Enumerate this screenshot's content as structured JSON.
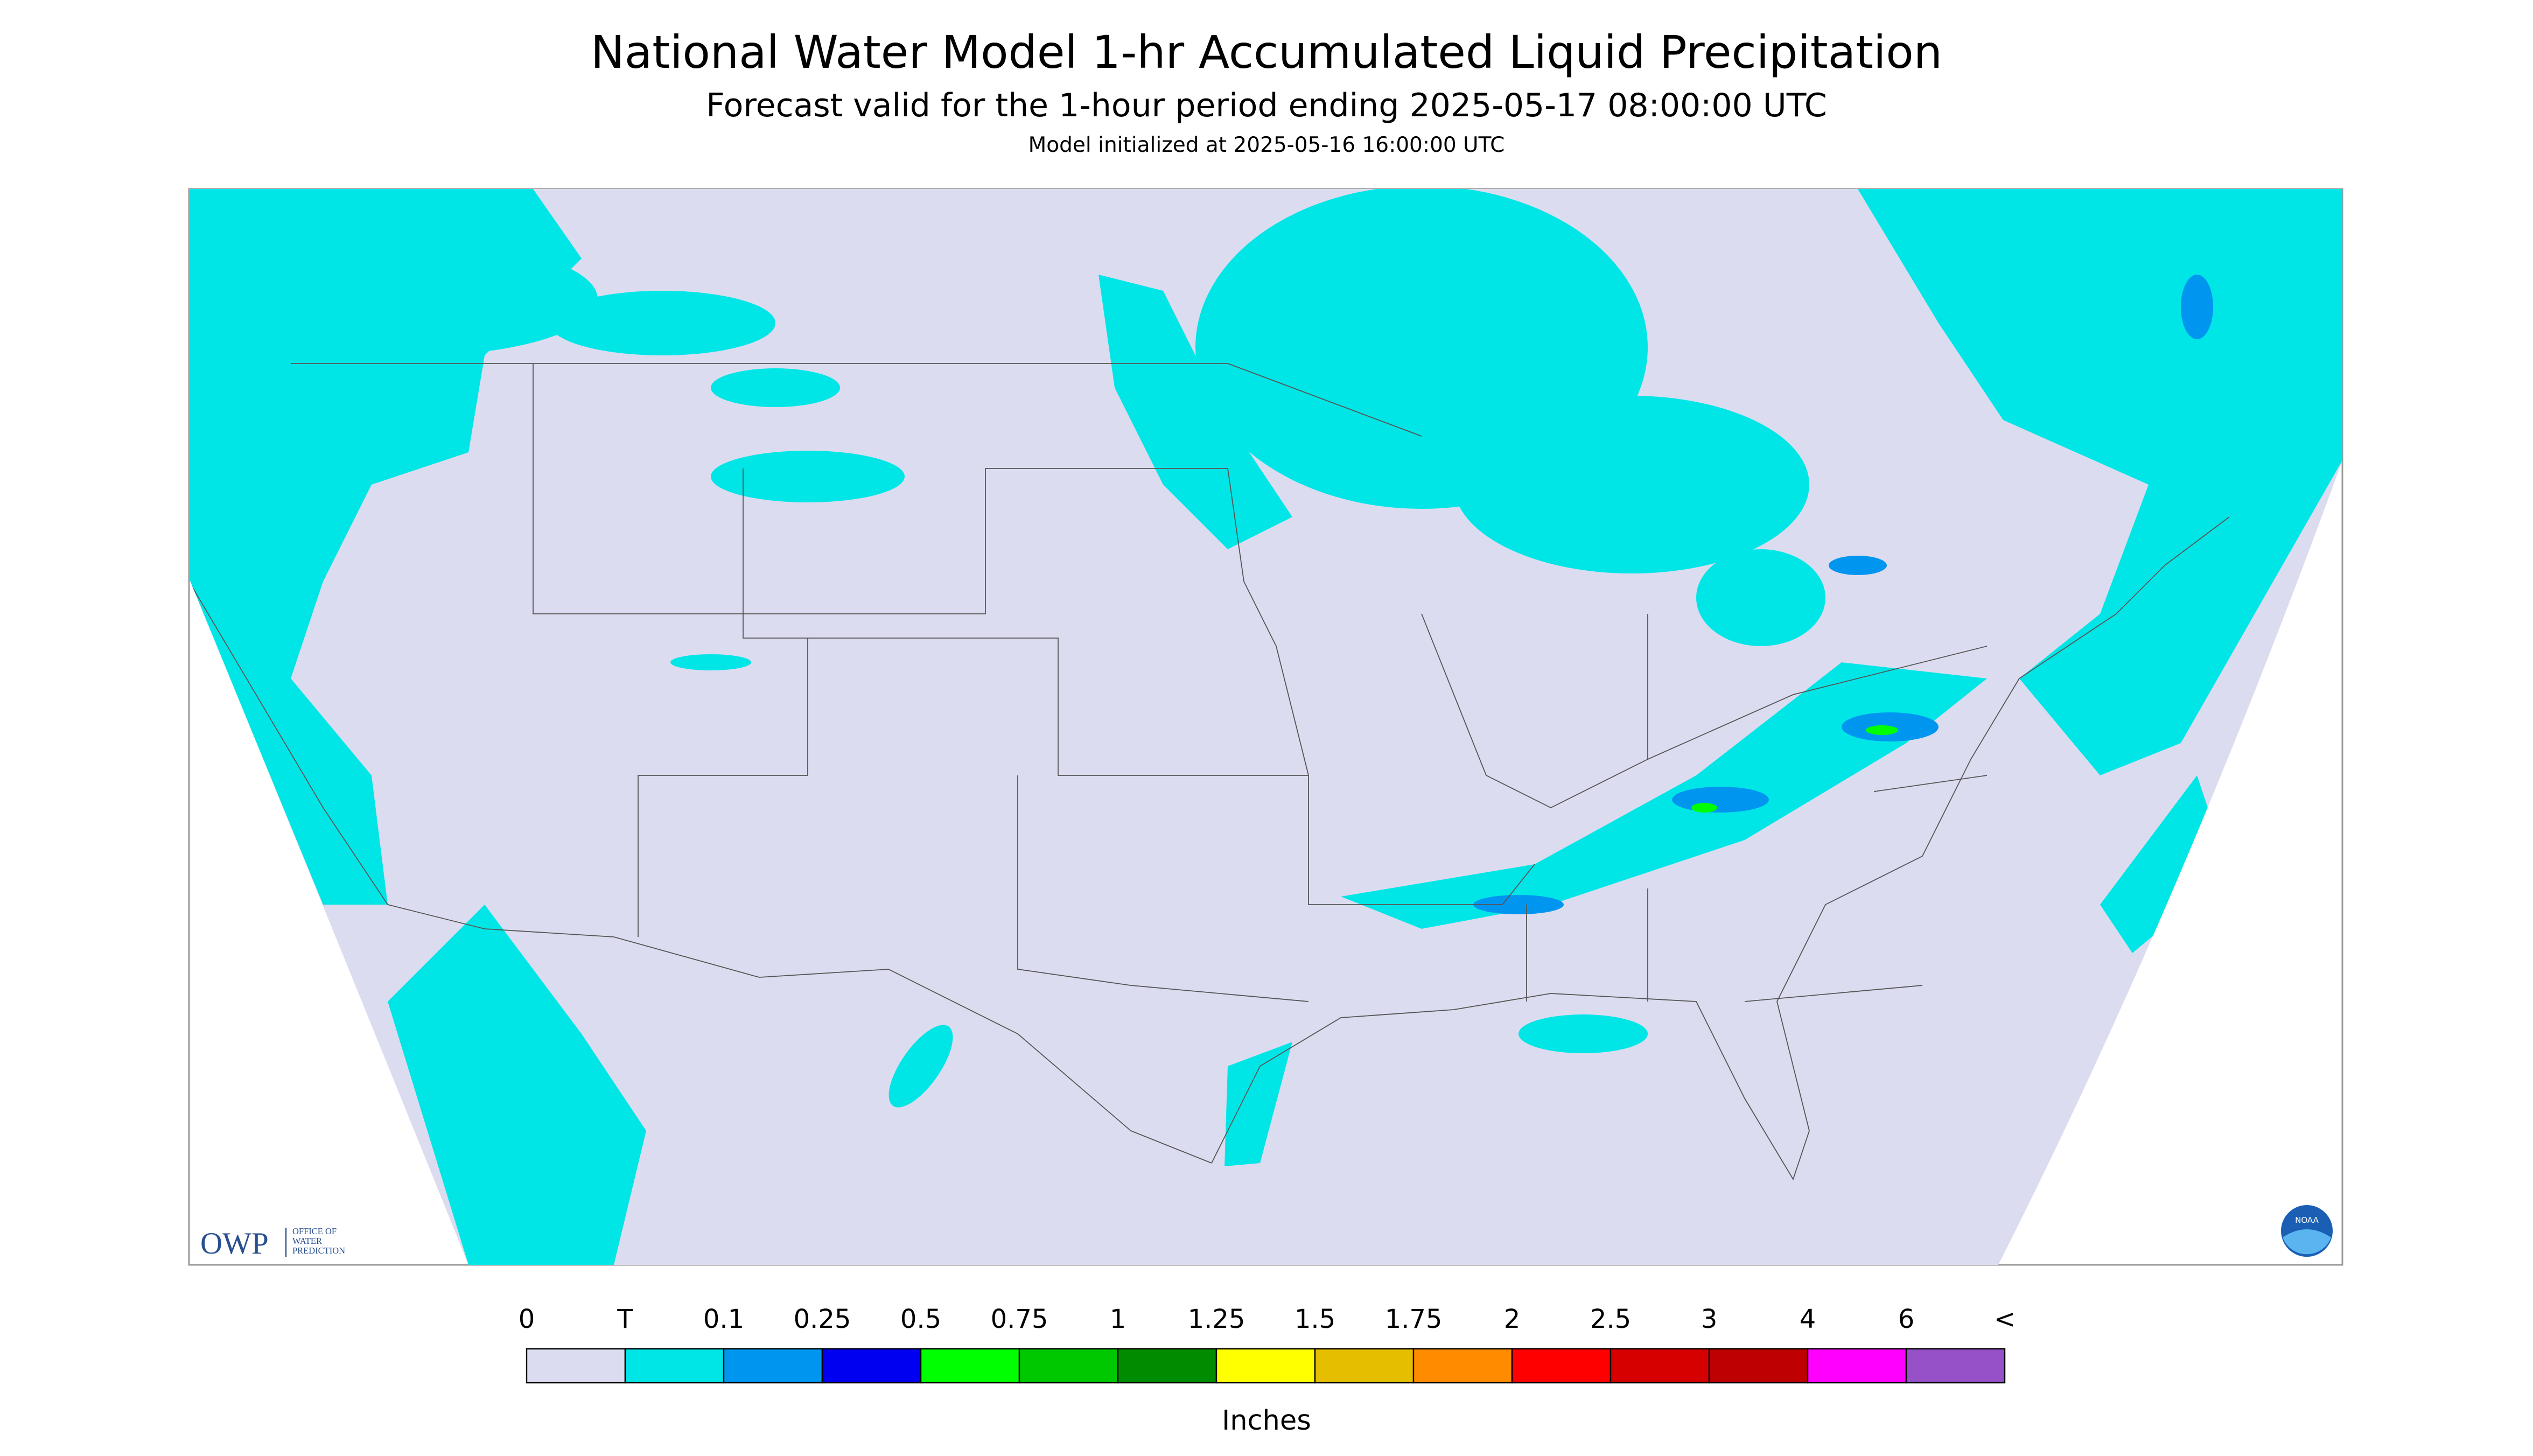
{
  "header": {
    "title": "National Water Model 1-hr Accumulated Liquid Precipitation",
    "subtitle": "Forecast valid for the 1-hour period ending 2025-05-17 08:00:00 UTC",
    "note": "Model initialized at 2025-05-16 16:00:00 UTC"
  },
  "legend": {
    "labels": [
      "0",
      "T",
      "0.1",
      "0.25",
      "0.5",
      "0.75",
      "1",
      "1.25",
      "1.5",
      "1.75",
      "2",
      "2.5",
      "3",
      "4",
      "6",
      "<"
    ],
    "colors": [
      "#dcdcf0",
      "#00e6e6",
      "#0096f0",
      "#0000f0",
      "#00ff00",
      "#00c800",
      "#008c00",
      "#ffff00",
      "#e6be00",
      "#ff8c00",
      "#ff0000",
      "#d70000",
      "#be0000",
      "#ff00ff",
      "#9650c8"
    ],
    "unit": "Inches"
  },
  "logos": {
    "owp": {
      "name": "OWP",
      "lines": [
        "OFFICE OF",
        "WATER",
        "PREDICTION"
      ]
    },
    "noaa": "NOAA"
  }
}
